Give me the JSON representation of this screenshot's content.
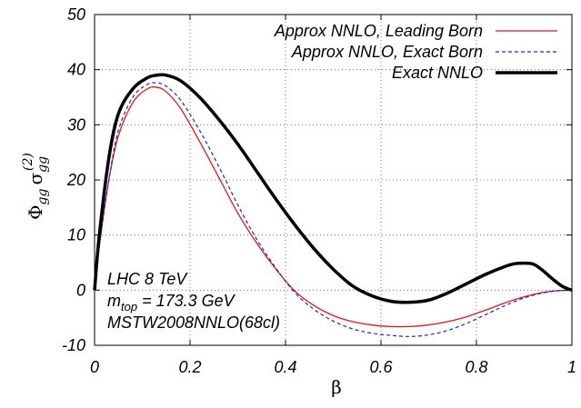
{
  "chart_data": {
    "type": "line",
    "xlabel": "β",
    "ylabel": {
      "base": "Φ",
      "base_sub": "gg",
      "sigma": "σ",
      "sigma_sub": "gg",
      "sigma_sup": "(2)"
    },
    "xlim": [
      0,
      1
    ],
    "ylim": [
      -10,
      50
    ],
    "x_ticks": [
      "0",
      "0.2",
      "0.4",
      "0.6",
      "0.8",
      "1"
    ],
    "y_ticks": [
      "-10",
      "0",
      "10",
      "20",
      "30",
      "40",
      "50"
    ],
    "grid": true,
    "legend_position": "top-right",
    "series": [
      {
        "name": "Approx NNLO, Leading Born",
        "color": "#e8141b",
        "style": "solid",
        "x": [
          0,
          0.01,
          0.03,
          0.05,
          0.08,
          0.11,
          0.13,
          0.15,
          0.18,
          0.22,
          0.26,
          0.3,
          0.34,
          0.38,
          0.42,
          0.46,
          0.5,
          0.54,
          0.58,
          0.62,
          0.66,
          0.7,
          0.74,
          0.78,
          0.82,
          0.86,
          0.9,
          0.94,
          0.97,
          1.0
        ],
        "y": [
          0,
          8,
          20,
          28,
          34,
          36.5,
          36.8,
          36,
          33,
          27,
          20.5,
          14,
          8.5,
          3.8,
          -0.2,
          -2.8,
          -4.6,
          -5.7,
          -6.3,
          -6.6,
          -6.6,
          -6.3,
          -5.7,
          -4.8,
          -3.6,
          -2.3,
          -1.2,
          -0.4,
          -0.1,
          0
        ]
      },
      {
        "name": "Approx NNLO, Exact Born",
        "color": "#1a24d9",
        "style": "dashed",
        "x": [
          0,
          0.01,
          0.03,
          0.05,
          0.08,
          0.11,
          0.13,
          0.15,
          0.18,
          0.22,
          0.26,
          0.3,
          0.34,
          0.38,
          0.42,
          0.46,
          0.5,
          0.54,
          0.58,
          0.62,
          0.66,
          0.7,
          0.74,
          0.78,
          0.82,
          0.86,
          0.9,
          0.94,
          0.97,
          1.0
        ],
        "y": [
          0,
          8,
          20,
          29,
          35,
          37.3,
          37.6,
          37,
          34.5,
          29,
          22.5,
          15.5,
          9.2,
          4,
          -0.5,
          -3.5,
          -5.6,
          -7,
          -7.8,
          -8.2,
          -8.4,
          -8.1,
          -7.3,
          -6,
          -4.4,
          -2.8,
          -1.4,
          -0.5,
          -0.1,
          0
        ]
      },
      {
        "name": "Exact NNLO",
        "color": "#000000",
        "style": "thick",
        "x": [
          0,
          0.01,
          0.03,
          0.05,
          0.08,
          0.11,
          0.13,
          0.15,
          0.18,
          0.22,
          0.26,
          0.3,
          0.34,
          0.38,
          0.42,
          0.46,
          0.5,
          0.54,
          0.58,
          0.62,
          0.66,
          0.7,
          0.74,
          0.78,
          0.82,
          0.86,
          0.88,
          0.9,
          0.92,
          0.94,
          0.96,
          0.98,
          1.0
        ],
        "y": [
          0,
          10,
          24,
          32,
          36.5,
          38.5,
          39,
          39,
          38,
          35,
          31,
          26.5,
          21.5,
          16.5,
          11.8,
          7.5,
          3.8,
          0.8,
          -1,
          -2,
          -2.2,
          -1.8,
          -0.5,
          1.2,
          2.9,
          4.3,
          4.8,
          4.9,
          4.7,
          3.5,
          2,
          0.7,
          0
        ]
      }
    ],
    "annotations": {
      "line1": "LHC 8 TeV",
      "line2": {
        "m": "m",
        "m_sub": "top",
        "value": " = 173.3 GeV"
      },
      "line3": "MSTW2008NNLO(68cl)"
    }
  }
}
